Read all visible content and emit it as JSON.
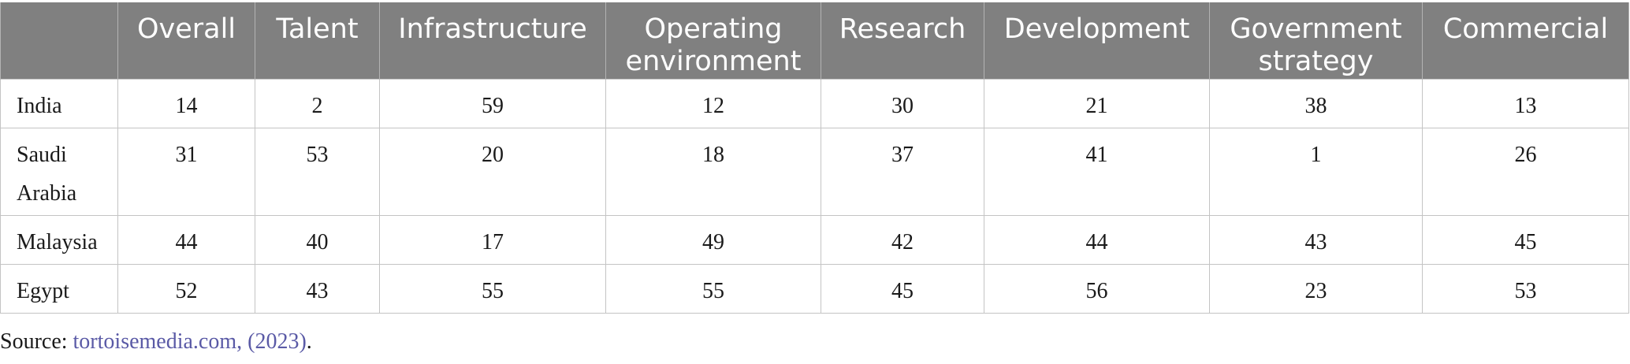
{
  "table": {
    "headers": [
      "",
      "Overall",
      "Talent",
      "Infrastructure",
      "Operating environment",
      "Research",
      "Development",
      "Government strategy",
      "Commercial"
    ],
    "rows": [
      {
        "country": "India",
        "values": [
          "14",
          "2",
          "59",
          "12",
          "30",
          "21",
          "38",
          "13"
        ]
      },
      {
        "country": "Saudi Arabia",
        "values": [
          "31",
          "53",
          "20",
          "18",
          "37",
          "41",
          "1",
          "26"
        ]
      },
      {
        "country": "Malaysia",
        "values": [
          "44",
          "40",
          "17",
          "49",
          "42",
          "44",
          "43",
          "45"
        ]
      },
      {
        "country": "Egypt",
        "values": [
          "52",
          "43",
          "55",
          "55",
          "45",
          "56",
          "23",
          "53"
        ]
      }
    ]
  },
  "source": {
    "prefix": "Source: ",
    "link_text": "tortoisemedia.com, (2023)",
    "suffix": "."
  },
  "colors": {
    "header_bg": "#808080",
    "header_text": "#ffffff",
    "link": "#5a5aa6"
  }
}
